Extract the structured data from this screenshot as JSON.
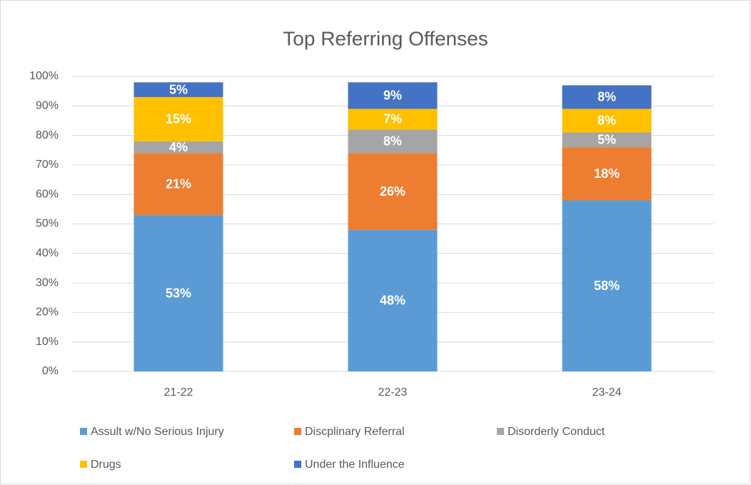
{
  "chart_data": {
    "type": "stacked_bar",
    "title": "Top Referring Offenses",
    "categories": [
      "21-22",
      "22-23",
      "23-24"
    ],
    "series": [
      {
        "name": "Assult w/No Serious Injury",
        "color": "#5b9bd5",
        "values": [
          53,
          48,
          58
        ],
        "value_labels": [
          "53%",
          "48%",
          "58%"
        ]
      },
      {
        "name": "Discplinary Referral",
        "color": "#ed7d31",
        "values": [
          21,
          26,
          18
        ],
        "value_labels": [
          "21%",
          "26%",
          "18%"
        ]
      },
      {
        "name": "Disorderly Conduct",
        "color": "#a5a5a5",
        "values": [
          4,
          8,
          5
        ],
        "value_labels": [
          "4%",
          "8%",
          "5%"
        ]
      },
      {
        "name": "Drugs",
        "color": "#ffc000",
        "values": [
          15,
          7,
          8
        ],
        "value_labels": [
          "15%",
          "7%",
          "8%"
        ]
      },
      {
        "name": "Under the Influence",
        "color": "#4472c4",
        "values": [
          5,
          9,
          8
        ],
        "value_labels": [
          "5%",
          "9%",
          "8%"
        ]
      }
    ],
    "ylim": [
      0,
      100
    ],
    "yticks": [
      {
        "value": 0,
        "label": "0%"
      },
      {
        "value": 10,
        "label": "10%"
      },
      {
        "value": 20,
        "label": "20%"
      },
      {
        "value": 30,
        "label": "30%"
      },
      {
        "value": 40,
        "label": "40%"
      },
      {
        "value": 50,
        "label": "50%"
      },
      {
        "value": 60,
        "label": "60%"
      },
      {
        "value": 70,
        "label": "70%"
      },
      {
        "value": 80,
        "label": "80%"
      },
      {
        "value": 90,
        "label": "90%"
      },
      {
        "value": 100,
        "label": "100%"
      }
    ],
    "grid": true,
    "legend": "bottom"
  }
}
